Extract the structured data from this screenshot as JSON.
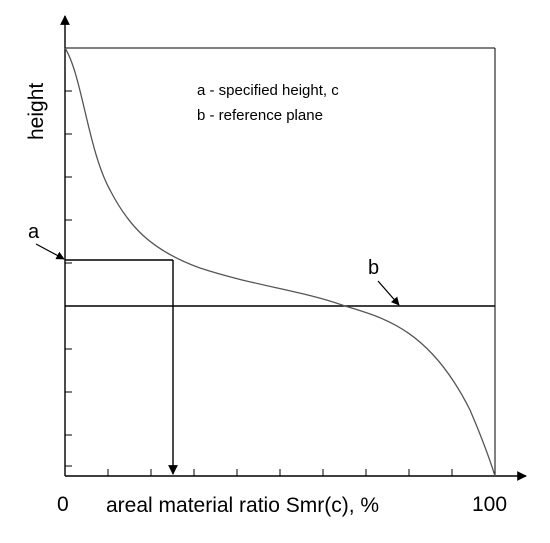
{
  "legend": {
    "line_a": "a - specified height, c",
    "line_b": "b - reference plane"
  },
  "axes": {
    "y_title": "height",
    "x_title": "areal material ratio Smr(c), %",
    "x_min_label": "0",
    "x_max_label": "100"
  },
  "markers": {
    "a": "a",
    "b": "b"
  },
  "colors": {
    "curve": "#555555",
    "lines": "#000000"
  }
}
